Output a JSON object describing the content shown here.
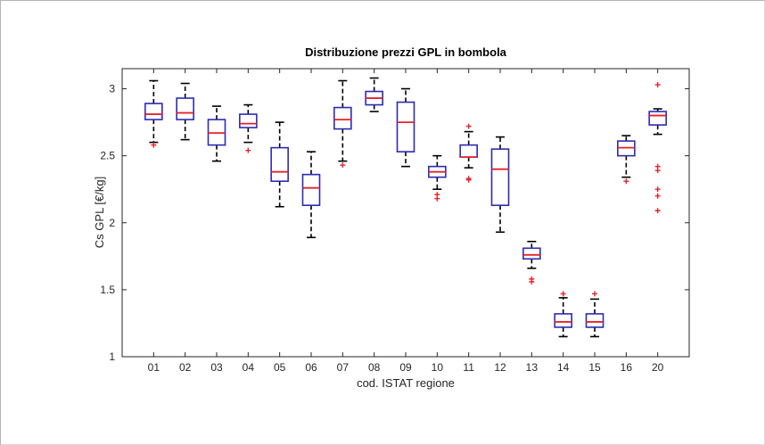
{
  "chart_data": {
    "type": "boxplot",
    "title": "Distribuzione prezzi GPL in bombola",
    "xlabel": "cod. ISTAT regione",
    "ylabel": "Cs GPL [€/kg]",
    "ylim": [
      1,
      3.15
    ],
    "yticks": [
      1,
      1.5,
      2,
      2.5,
      3
    ],
    "ytick_labels": [
      "1",
      "1.5",
      "2",
      "2.5",
      "3"
    ],
    "grid": false,
    "colors": {
      "box": "#2b2bb5",
      "median": "#e8232a",
      "whisker": "#000000",
      "outlier": "#e8232a",
      "axis": "#262626"
    },
    "categories": [
      "01",
      "02",
      "03",
      "04",
      "05",
      "06",
      "07",
      "08",
      "09",
      "10",
      "11",
      "12",
      "13",
      "14",
      "15",
      "16",
      "20"
    ],
    "boxes": [
      {
        "min": 2.6,
        "q1": 2.77,
        "median": 2.81,
        "q3": 2.89,
        "max": 3.06,
        "outliers": [
          2.58
        ]
      },
      {
        "min": 2.62,
        "q1": 2.77,
        "median": 2.82,
        "q3": 2.93,
        "max": 3.04,
        "outliers": []
      },
      {
        "min": 2.46,
        "q1": 2.58,
        "median": 2.67,
        "q3": 2.77,
        "max": 2.87,
        "outliers": []
      },
      {
        "min": 2.6,
        "q1": 2.71,
        "median": 2.74,
        "q3": 2.81,
        "max": 2.88,
        "outliers": [
          2.54
        ]
      },
      {
        "min": 2.12,
        "q1": 2.31,
        "median": 2.38,
        "q3": 2.56,
        "max": 2.75,
        "outliers": []
      },
      {
        "min": 1.89,
        "q1": 2.13,
        "median": 2.26,
        "q3": 2.36,
        "max": 2.53,
        "outliers": []
      },
      {
        "min": 2.46,
        "q1": 2.7,
        "median": 2.77,
        "q3": 2.86,
        "max": 3.06,
        "outliers": [
          2.43
        ]
      },
      {
        "min": 2.83,
        "q1": 2.88,
        "median": 2.93,
        "q3": 2.98,
        "max": 3.08,
        "outliers": []
      },
      {
        "min": 2.42,
        "q1": 2.53,
        "median": 2.75,
        "q3": 2.9,
        "max": 3.0,
        "outliers": []
      },
      {
        "min": 2.25,
        "q1": 2.34,
        "median": 2.38,
        "q3": 2.42,
        "max": 2.5,
        "outliers": [
          2.18,
          2.21
        ]
      },
      {
        "min": 2.41,
        "q1": 2.49,
        "median": 2.49,
        "q3": 2.58,
        "max": 2.68,
        "outliers": [
          2.72,
          2.32,
          2.33
        ]
      },
      {
        "min": 1.93,
        "q1": 2.13,
        "median": 2.4,
        "q3": 2.55,
        "max": 2.64,
        "outliers": []
      },
      {
        "min": 1.66,
        "q1": 1.73,
        "median": 1.76,
        "q3": 1.81,
        "max": 1.86,
        "outliers": [
          1.56,
          1.58
        ]
      },
      {
        "min": 1.15,
        "q1": 1.22,
        "median": 1.26,
        "q3": 1.32,
        "max": 1.44,
        "outliers": [
          1.47
        ]
      },
      {
        "min": 1.15,
        "q1": 1.22,
        "median": 1.26,
        "q3": 1.32,
        "max": 1.43,
        "outliers": [
          1.47
        ]
      },
      {
        "min": 2.34,
        "q1": 2.5,
        "median": 2.56,
        "q3": 2.61,
        "max": 2.65,
        "outliers": [
          2.31
        ]
      },
      {
        "min": 2.66,
        "q1": 2.73,
        "median": 2.8,
        "q3": 2.83,
        "max": 2.85,
        "outliers": [
          3.03,
          2.42,
          2.39,
          2.25,
          2.2,
          2.09
        ]
      }
    ]
  }
}
